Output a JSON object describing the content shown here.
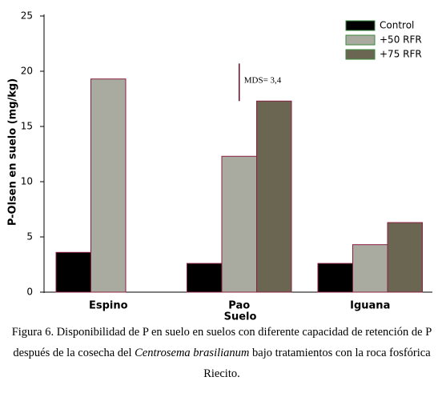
{
  "chart_data": {
    "type": "bar",
    "categories": [
      "Espino",
      "Pao",
      "Iguana"
    ],
    "series": [
      {
        "name": "Control",
        "color": "#000000",
        "values": [
          3.6,
          2.6,
          2.6
        ]
      },
      {
        "name": "+50 RFR",
        "color": "#a9aba1",
        "values": [
          19.3,
          12.3,
          4.3
        ]
      },
      {
        "name": "+75 RFR",
        "color": "#6b6651",
        "values": [
          null,
          17.3,
          6.3
        ]
      }
    ],
    "ylim": [
      0,
      25
    ],
    "yticks": [
      0,
      5,
      10,
      15,
      20,
      25
    ],
    "ylabel": "P-Olsen en suelo (mg/kg)",
    "xlabel": "Suelo",
    "legend": "top-right",
    "annotation": {
      "label": "MDS= 3,4",
      "value": 3.4
    },
    "caption": [
      "Figura 6. Disponibilidad de P en suelo en suelos con diferente capacidad de retención de P después de la cosecha del ",
      "Centrosema brasilianum",
      " bajo tratamientos con la roca fosfórica Riecito."
    ]
  }
}
